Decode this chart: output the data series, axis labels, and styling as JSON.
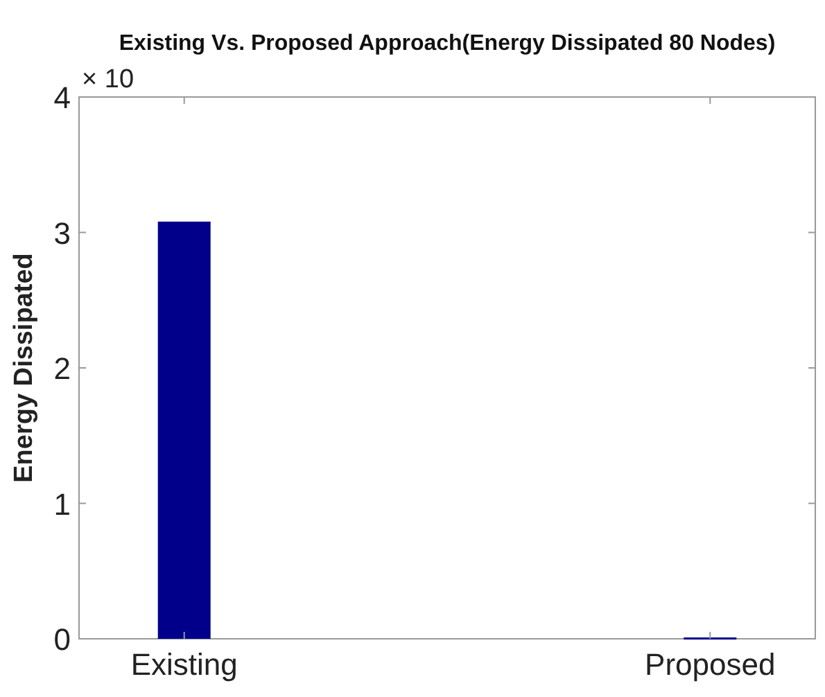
{
  "chart_data": {
    "type": "bar",
    "title": "Existing Vs. Proposed Approach(Energy Dissipated 80 Nodes)",
    "ylabel": "Energy Dissipated",
    "categories": [
      "Existing",
      "Proposed"
    ],
    "values": [
      3.08,
      0.01
    ],
    "color": "#00008b",
    "ylim": [
      0,
      4
    ],
    "yticks": [
      0,
      1,
      2,
      3,
      4
    ],
    "grid": false,
    "annotations": [
      "× 10"
    ]
  }
}
